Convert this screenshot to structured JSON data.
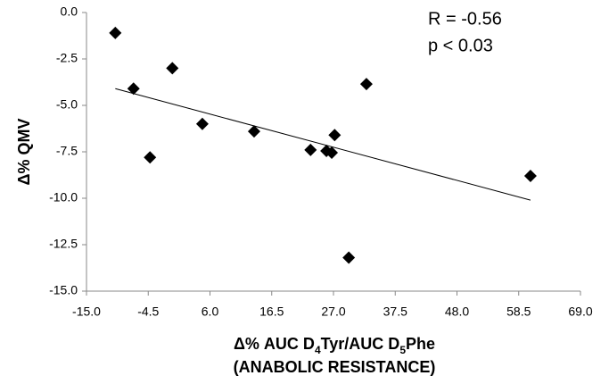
{
  "chart_data": {
    "type": "scatter",
    "annotations": [
      "R = -0.56",
      "p < 0.03"
    ],
    "ylabel": "Δ% QMV",
    "xlabel_parts": [
      "Δ% AUC D",
      "4",
      "Tyr/AUC D",
      "5",
      "Phe"
    ],
    "xlabel_line2": "(ANABOLIC RESISTANCE)",
    "x": [
      -10.1,
      -7.0,
      -4.2,
      -0.4,
      4.7,
      13.5,
      23.1,
      25.8,
      26.7,
      27.2,
      29.6,
      32.6,
      60.5
    ],
    "y": [
      -1.1,
      -4.1,
      -7.8,
      -3.0,
      -6.0,
      -6.4,
      -7.4,
      -7.45,
      -7.55,
      -6.6,
      -13.2,
      -3.85,
      -8.8
    ],
    "color": "#000000",
    "trendline": {
      "x": [
        -10.1,
        60.5
      ],
      "y": [
        -4.1,
        -10.1
      ]
    },
    "xlim": [
      -15,
      69
    ],
    "xticks": [
      {
        "value": -15,
        "label": "-15.0"
      },
      -4.5,
      {
        "value": 6,
        "label": "6.0"
      },
      16.5,
      {
        "value": 27,
        "label": "27.0"
      },
      37.5,
      {
        "value": 48,
        "label": "48.0"
      },
      58.5,
      {
        "value": 69,
        "label": "69.0"
      }
    ],
    "ylim": [
      -15,
      0
    ],
    "yticks": [
      {
        "value": 0,
        "label": "0.0"
      },
      -2.5,
      {
        "value": -5,
        "label": "-5.0"
      },
      -7.5,
      {
        "value": -10,
        "label": "-10.0"
      },
      -12.5,
      {
        "value": -15,
        "label": "-15.0"
      }
    ],
    "grid": false
  }
}
